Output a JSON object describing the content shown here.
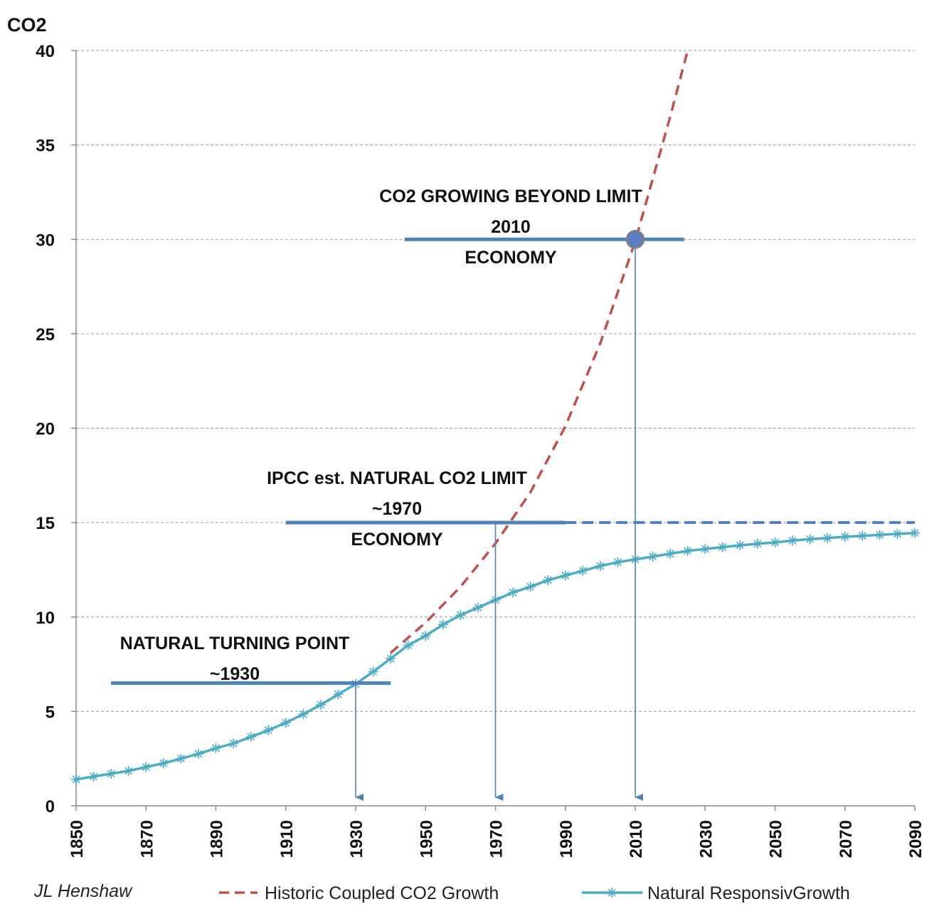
{
  "chart_data": {
    "type": "line",
    "ylabel": "CO2",
    "xlabel": "",
    "xlim": [
      1850,
      2090
    ],
    "ylim": [
      0,
      40
    ],
    "x_ticks": [
      "1850",
      "1870",
      "1890",
      "1910",
      "1930",
      "1950",
      "1970",
      "1990",
      "2010",
      "2030",
      "2050",
      "2070",
      "2090"
    ],
    "y_ticks": [
      "0",
      "5",
      "10",
      "15",
      "20",
      "25",
      "30",
      "35",
      "40"
    ],
    "grid": "horizontal dashed",
    "legend_position": "bottom",
    "series": [
      {
        "name": "Historic Coupled CO2 Growth",
        "color": "#c0504d",
        "style": "dashed",
        "x": [
          1940,
          1950,
          1960,
          1970,
          1980,
          1990,
          2000,
          2010,
          2020,
          2025
        ],
        "values": [
          8.1,
          9.7,
          11.6,
          13.9,
          16.6,
          20.1,
          24.5,
          29.9,
          36.5,
          40.0
        ]
      },
      {
        "name": "Natural ResponsivGrowth",
        "color": "#4bacc6",
        "style": "solid-star",
        "x": [
          1850,
          1855,
          1860,
          1865,
          1870,
          1875,
          1880,
          1885,
          1890,
          1895,
          1900,
          1905,
          1910,
          1915,
          1920,
          1925,
          1930,
          1935,
          1940,
          1945,
          1950,
          1955,
          1960,
          1965,
          1970,
          1975,
          1980,
          1985,
          1990,
          1995,
          2000,
          2005,
          2010,
          2015,
          2020,
          2025,
          2030,
          2035,
          2040,
          2045,
          2050,
          2055,
          2060,
          2065,
          2070,
          2075,
          2080,
          2085,
          2090
        ],
        "values": [
          1.4,
          1.55,
          1.7,
          1.85,
          2.05,
          2.25,
          2.5,
          2.75,
          3.05,
          3.3,
          3.65,
          4.0,
          4.4,
          4.85,
          5.35,
          5.9,
          6.45,
          7.1,
          7.8,
          8.5,
          9.0,
          9.6,
          10.1,
          10.5,
          10.9,
          11.3,
          11.6,
          11.95,
          12.2,
          12.45,
          12.7,
          12.9,
          13.05,
          13.2,
          13.35,
          13.5,
          13.6,
          13.7,
          13.8,
          13.88,
          13.95,
          14.05,
          14.12,
          14.18,
          14.25,
          14.3,
          14.35,
          14.4,
          14.45
        ]
      }
    ],
    "annotations": [
      {
        "lines": [
          "NATURAL TURNING POINT",
          "~1930"
        ],
        "x": 1930,
        "y": 6.5,
        "bar_from": 1860,
        "bar_to": 1940
      },
      {
        "lines": [
          "IPCC est. NATURAL CO2 LIMIT",
          "~1970",
          "ECONOMY"
        ],
        "x": 1970,
        "y": 15,
        "bar_from": 1910,
        "bar_to": 1990
      },
      {
        "lines": [
          "CO2 GROWING BEYOND LIMIT",
          "2010",
          "ECONOMY"
        ],
        "x": 2010,
        "y": 30,
        "bar_from": 1944,
        "bar_to": 2024
      }
    ],
    "limit_line": {
      "y": 15,
      "from": 1985,
      "to": 2090,
      "style": "dashed"
    },
    "credit": "JL Henshaw"
  }
}
